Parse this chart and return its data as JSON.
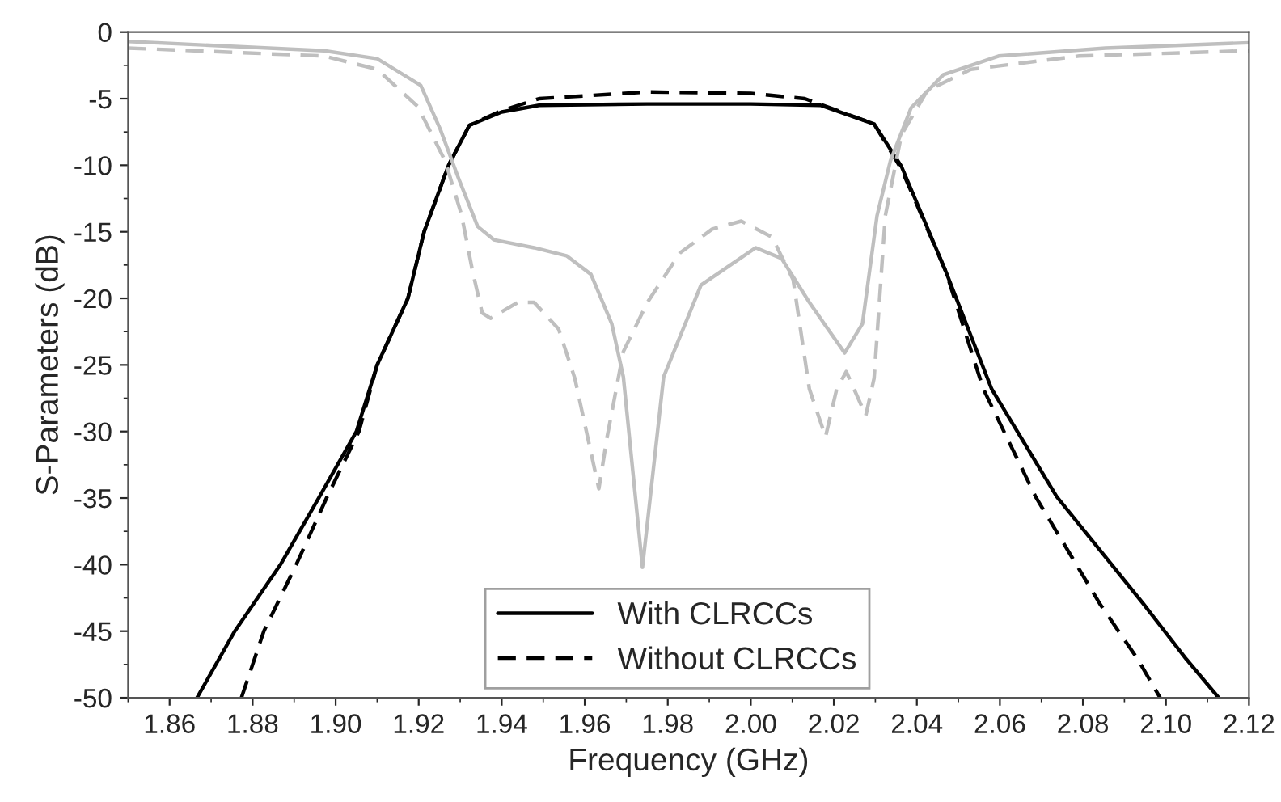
{
  "chart_data": {
    "type": "line",
    "xlabel": "Frequency (GHz)",
    "ylabel": "S-Parameters (dB)",
    "xlim": [
      1.85,
      2.12
    ],
    "ylim": [
      -50,
      0
    ],
    "xticks": [
      {
        "value": 1.86,
        "label": "1.86"
      },
      {
        "value": 1.88,
        "label": "1.88"
      },
      {
        "value": 1.9,
        "label": "1.90"
      },
      {
        "value": 1.92,
        "label": "1.92"
      },
      {
        "value": 1.94,
        "label": "1.94"
      },
      {
        "value": 1.96,
        "label": "1.96"
      },
      {
        "value": 1.98,
        "label": "1.98"
      },
      {
        "value": 2.0,
        "label": "2.00"
      },
      {
        "value": 2.02,
        "label": "2.02"
      },
      {
        "value": 2.04,
        "label": "2.04"
      },
      {
        "value": 2.06,
        "label": "2.06"
      },
      {
        "value": 2.08,
        "label": "2.08"
      },
      {
        "value": 2.1,
        "label": "2.10"
      },
      {
        "value": 2.12,
        "label": "2.12"
      }
    ],
    "yticks": [
      -50,
      -45,
      -40,
      -35,
      -30,
      -25,
      -20,
      -15,
      -10,
      -5,
      0
    ],
    "grid": false,
    "legend": "bottom",
    "series": [
      {
        "name": "With CLRCCs",
        "color": "#000000",
        "line_style": "solid",
        "x": [
          1.8666,
          1.8757,
          1.8867,
          1.8959,
          1.905,
          1.91,
          1.9174,
          1.9213,
          1.9272,
          1.9322,
          1.94,
          1.949,
          1.975,
          2.0,
          2.0168,
          2.0297,
          2.0363,
          2.047,
          2.058,
          2.0737,
          2.0947,
          2.1049,
          2.1127
        ],
        "values": [
          -50,
          -45,
          -40,
          -35,
          -30,
          -25,
          -20,
          -15,
          -10,
          -7,
          -6,
          -5.5,
          -5.4,
          -5.4,
          -5.5,
          -6.9,
          -10.1,
          -18,
          -26.8,
          -34.9,
          -43,
          -47.1,
          -50
        ]
      },
      {
        "name": "Without CLRCCs",
        "color": "#000000",
        "line_style": "dashed",
        "x": [
          1.8773,
          1.8827,
          1.8905,
          1.8978,
          1.9056,
          1.91,
          1.9174,
          1.9213,
          1.9272,
          1.9322,
          1.94,
          1.949,
          1.975,
          2.0,
          2.013,
          2.0297,
          2.0363,
          2.047,
          2.056,
          2.0686,
          2.0842,
          2.0932,
          2.0986
        ],
        "values": [
          -50,
          -45,
          -40,
          -35,
          -30,
          -25,
          -20,
          -15,
          -10,
          -7,
          -5.9,
          -5.0,
          -4.5,
          -4.6,
          -5.0,
          -6.9,
          -10.3,
          -18,
          -26.8,
          -34.9,
          -43,
          -47.1,
          -50
        ]
      },
      {
        "color": "#bfbfbf",
        "line_style": "solid",
        "x": [
          1.85,
          1.8972,
          1.91,
          1.9205,
          1.9252,
          1.9295,
          1.9342,
          1.9381,
          1.9478,
          1.9556,
          1.9615,
          1.9665,
          1.9693,
          1.9739,
          1.979,
          1.988,
          2.0012,
          2.0074,
          2.0141,
          2.0226,
          2.0269,
          2.0304,
          2.0336,
          2.0386,
          2.0464,
          2.0597,
          2.0854,
          2.12
        ],
        "values": [
          -0.7,
          -1.4,
          -2.0,
          -4.0,
          -7.3,
          -10.9,
          -14.6,
          -15.6,
          -16.2,
          -16.8,
          -18.2,
          -21.9,
          -25.9,
          -40.2,
          -25.9,
          -19.0,
          -16.2,
          -17.0,
          -20.3,
          -24.1,
          -21.9,
          -13.8,
          -9.7,
          -5.7,
          -3.2,
          -1.8,
          -1.2,
          -0.8
        ]
      },
      {
        "color": "#bfbfbf",
        "line_style": "dashed",
        "x": [
          1.85,
          1.8972,
          1.91,
          1.9198,
          1.9264,
          1.9303,
          1.933,
          1.9353,
          1.9373,
          1.9439,
          1.9478,
          1.9537,
          1.9576,
          1.9634,
          1.9654,
          1.9693,
          1.9751,
          1.9829,
          1.9907,
          1.9977,
          2.0051,
          2.0102,
          2.0141,
          2.018,
          2.0207,
          2.023,
          2.0277,
          2.0297,
          2.0324,
          2.0363,
          2.0425,
          2.053,
          2.0791,
          2.12
        ],
        "values": [
          -1.2,
          -1.8,
          -2.8,
          -5.6,
          -9.7,
          -13.7,
          -18.0,
          -21.1,
          -21.5,
          -20.3,
          -20.3,
          -22.3,
          -26.0,
          -34.3,
          -30.4,
          -24.0,
          -20.3,
          -16.6,
          -14.8,
          -14.2,
          -15.4,
          -18.6,
          -26.8,
          -30.4,
          -26.8,
          -25.5,
          -28.8,
          -26.0,
          -13.8,
          -7.7,
          -4.4,
          -2.8,
          -1.8,
          -1.4
        ]
      }
    ]
  }
}
